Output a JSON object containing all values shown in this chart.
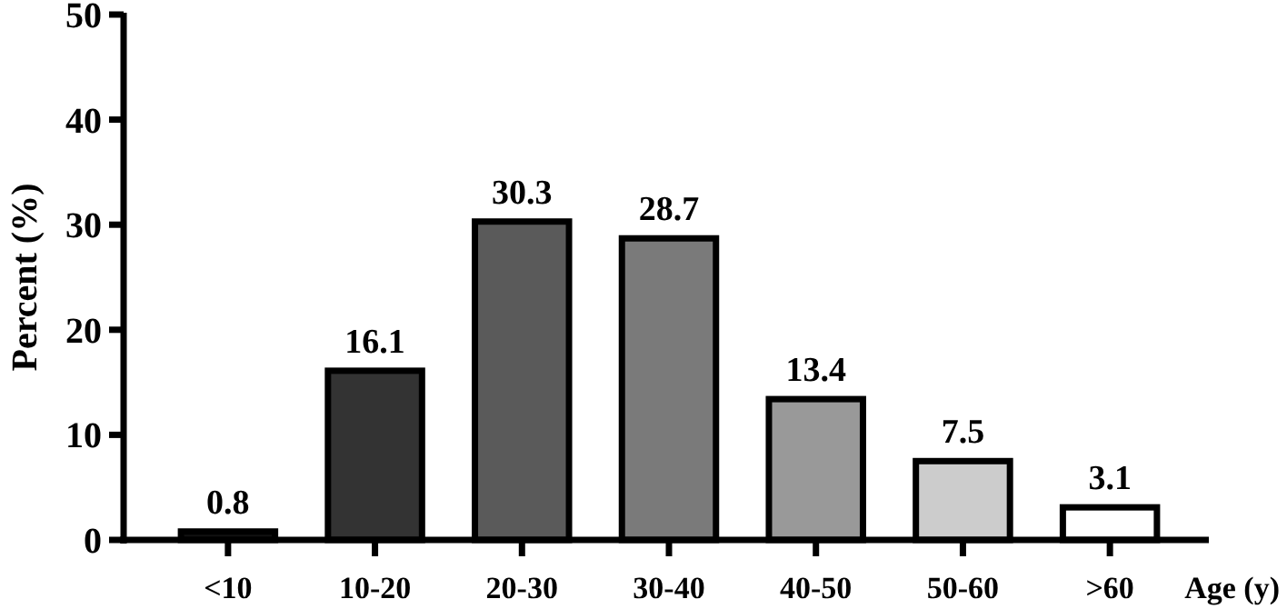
{
  "chart_data": {
    "type": "bar",
    "xlabel": "Age (y)",
    "ylabel": "Percent (%)",
    "categories": [
      "<10",
      "10-20",
      "20-30",
      "30-40",
      "40-50",
      "50-60",
      ">60"
    ],
    "values": [
      0.8,
      16.1,
      30.3,
      28.7,
      13.4,
      7.5,
      3.1
    ],
    "colors": [
      "#111111",
      "#333333",
      "#5a5a5a",
      "#7a7a7a",
      "#999999",
      "#cccccc",
      "#ffffff"
    ],
    "ylim": [
      0,
      50
    ],
    "yticks": [
      0,
      10,
      20,
      30,
      40,
      50
    ],
    "data_labels": true
  }
}
